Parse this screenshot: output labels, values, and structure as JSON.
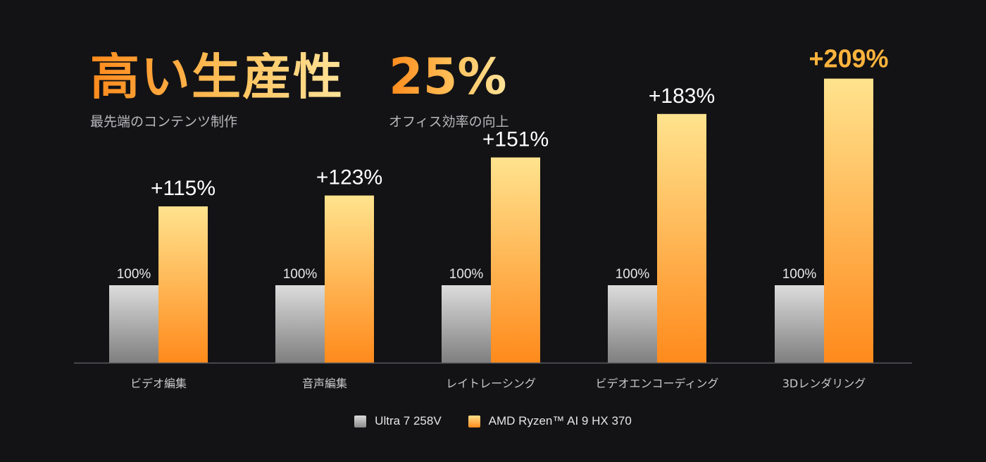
{
  "header": {
    "left": {
      "title": "高い生産性",
      "subtitle": "最先端のコンテンツ制作"
    },
    "right": {
      "title": "25%",
      "subtitle": "オフィス効率の向上"
    }
  },
  "colors": {
    "background": "#131315",
    "baseline_top": "#dcdcdc",
    "baseline_bottom": "#7f7f7f",
    "series_top": "#ffe38e",
    "series_bottom": "#ff8a1c",
    "highlight_label": "#ffb43d"
  },
  "chart_data": {
    "type": "bar",
    "categories": [
      "ビデオ編集",
      "音声編集",
      "レイトレーシング",
      "ビデオエンコーディング",
      "3Dレンダリング"
    ],
    "series": [
      {
        "name": "Ultra 7 258V",
        "values": [
          100,
          100,
          100,
          100,
          100
        ],
        "labels": [
          "100%",
          "100%",
          "100%",
          "100%",
          "100%"
        ]
      },
      {
        "name": "AMD Ryzen™ AI 9 HX 370",
        "values": [
          115,
          123,
          151,
          183,
          209
        ],
        "labels": [
          "+115%",
          "+123%",
          "+151%",
          "+183%",
          "+209%"
        ]
      }
    ],
    "legend_position": "bottom-center",
    "grid": false
  }
}
